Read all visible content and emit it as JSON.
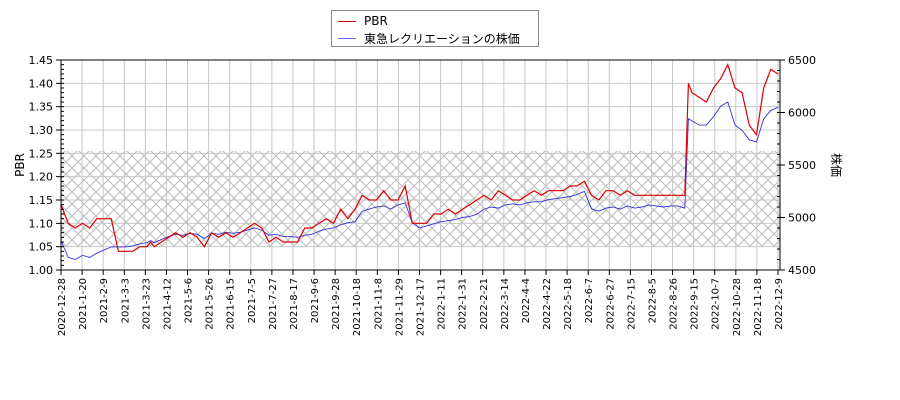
{
  "chart_data": {
    "type": "line",
    "title": "",
    "legend": {
      "position": "top-center",
      "entries": [
        "PBR",
        "東急レクリエーションの株価"
      ]
    },
    "xlabel": "",
    "ylabel": "PBR",
    "ylabel_right": "株価",
    "ylim": [
      1.0,
      1.45
    ],
    "ylim_right": [
      4500,
      6500
    ],
    "yticks": [
      "1.00",
      "1.05",
      "1.10",
      "1.15",
      "1.20",
      "1.25",
      "1.30",
      "1.35",
      "1.40",
      "1.45"
    ],
    "yticks_right": [
      "4500",
      "5000",
      "5500",
      "6000",
      "6500"
    ],
    "grid": true,
    "hatched_band": {
      "y_from": 1.05,
      "y_to": 1.255
    },
    "x_tick_labels": [
      "2020-12-28",
      "2021-1-20",
      "2021-2-9",
      "2021-3-3",
      "2021-3-23",
      "2021-4-12",
      "2021-5-6",
      "2021-5-26",
      "2021-6-15",
      "2021-7-5",
      "2021-7-27",
      "2021-8-17",
      "2021-9-6",
      "2021-9-28",
      "2021-10-18",
      "2021-11-8",
      "2021-11-29",
      "2021-12-17",
      "2022-1-11",
      "2022-1-31",
      "2022-2-21",
      "2022-3-14",
      "2022-4-4",
      "2022-4-22",
      "2022-5-18",
      "2022-6-7",
      "2022-6-27",
      "2022-7-15",
      "2022-8-5",
      "2022-8-26",
      "2022-9-15",
      "2022-10-7",
      "2022-10-28",
      "2022-11-18",
      "2022-12-9"
    ],
    "series": [
      {
        "name": "PBR",
        "color": "#dd0000",
        "axis": "left",
        "x_frac": [
          0,
          0.005,
          0.01,
          0.02,
          0.03,
          0.04,
          0.05,
          0.06,
          0.07,
          0.08,
          0.09,
          0.1,
          0.11,
          0.12,
          0.125,
          0.13,
          0.14,
          0.15,
          0.16,
          0.17,
          0.18,
          0.19,
          0.2,
          0.21,
          0.22,
          0.23,
          0.24,
          0.25,
          0.26,
          0.27,
          0.28,
          0.29,
          0.3,
          0.31,
          0.32,
          0.33,
          0.34,
          0.35,
          0.36,
          0.37,
          0.38,
          0.39,
          0.4,
          0.41,
          0.42,
          0.43,
          0.44,
          0.45,
          0.46,
          0.47,
          0.48,
          0.49,
          0.5,
          0.51,
          0.52,
          0.53,
          0.54,
          0.55,
          0.56,
          0.57,
          0.58,
          0.59,
          0.6,
          0.61,
          0.62,
          0.63,
          0.64,
          0.65,
          0.66,
          0.67,
          0.68,
          0.69,
          0.7,
          0.71,
          0.72,
          0.73,
          0.74,
          0.75,
          0.76,
          0.77,
          0.78,
          0.79,
          0.8,
          0.81,
          0.82,
          0.83,
          0.84,
          0.85,
          0.86,
          0.87,
          0.87,
          0.875,
          0.88,
          0.89,
          0.9,
          0.91,
          0.92,
          0.93,
          0.94,
          0.95,
          0.96,
          0.97,
          0.98,
          0.99,
          1.0
        ],
        "values": [
          1.14,
          1.12,
          1.1,
          1.09,
          1.1,
          1.09,
          1.11,
          1.11,
          1.11,
          1.04,
          1.04,
          1.04,
          1.05,
          1.05,
          1.06,
          1.05,
          1.06,
          1.07,
          1.08,
          1.07,
          1.08,
          1.07,
          1.05,
          1.08,
          1.07,
          1.08,
          1.07,
          1.08,
          1.09,
          1.1,
          1.09,
          1.06,
          1.07,
          1.06,
          1.06,
          1.06,
          1.09,
          1.09,
          1.1,
          1.11,
          1.1,
          1.13,
          1.11,
          1.13,
          1.16,
          1.15,
          1.15,
          1.17,
          1.15,
          1.15,
          1.18,
          1.1,
          1.1,
          1.1,
          1.12,
          1.12,
          1.13,
          1.12,
          1.13,
          1.14,
          1.15,
          1.16,
          1.15,
          1.17,
          1.16,
          1.15,
          1.15,
          1.16,
          1.17,
          1.16,
          1.17,
          1.17,
          1.17,
          1.18,
          1.18,
          1.19,
          1.16,
          1.15,
          1.17,
          1.17,
          1.16,
          1.17,
          1.16,
          1.16,
          1.16,
          1.16,
          1.16,
          1.16,
          1.16,
          1.16,
          1.16,
          1.4,
          1.38,
          1.37,
          1.36,
          1.39,
          1.41,
          1.44,
          1.39,
          1.38,
          1.31,
          1.29,
          1.39,
          1.43,
          1.42,
          1.41,
          1.36,
          1.38,
          1.39
        ]
      },
      {
        "name": "東急レクリエーションの株価",
        "color": "#3333dd",
        "axis": "right",
        "x_frac": [
          0,
          0.005,
          0.01,
          0.02,
          0.03,
          0.04,
          0.05,
          0.06,
          0.07,
          0.08,
          0.09,
          0.1,
          0.11,
          0.12,
          0.125,
          0.13,
          0.14,
          0.15,
          0.16,
          0.17,
          0.18,
          0.19,
          0.2,
          0.21,
          0.22,
          0.23,
          0.24,
          0.25,
          0.26,
          0.27,
          0.28,
          0.29,
          0.3,
          0.31,
          0.32,
          0.33,
          0.34,
          0.35,
          0.36,
          0.37,
          0.38,
          0.39,
          0.4,
          0.41,
          0.42,
          0.43,
          0.44,
          0.45,
          0.46,
          0.47,
          0.48,
          0.49,
          0.5,
          0.51,
          0.52,
          0.53,
          0.54,
          0.55,
          0.56,
          0.57,
          0.58,
          0.59,
          0.6,
          0.61,
          0.62,
          0.63,
          0.64,
          0.65,
          0.66,
          0.67,
          0.68,
          0.69,
          0.7,
          0.71,
          0.72,
          0.73,
          0.74,
          0.75,
          0.76,
          0.77,
          0.78,
          0.79,
          0.8,
          0.81,
          0.82,
          0.83,
          0.84,
          0.85,
          0.86,
          0.87,
          0.87,
          0.875,
          0.88,
          0.89,
          0.9,
          0.91,
          0.92,
          0.93,
          0.94,
          0.95,
          0.96,
          0.97,
          0.98,
          0.99,
          1.0
        ],
        "values": [
          4780,
          4700,
          4620,
          4600,
          4640,
          4620,
          4660,
          4690,
          4720,
          4720,
          4720,
          4730,
          4750,
          4760,
          4780,
          4760,
          4790,
          4820,
          4840,
          4830,
          4850,
          4840,
          4800,
          4850,
          4840,
          4860,
          4850,
          4860,
          4880,
          4900,
          4880,
          4830,
          4840,
          4820,
          4820,
          4810,
          4830,
          4840,
          4870,
          4890,
          4900,
          4930,
          4950,
          4960,
          5060,
          5080,
          5100,
          5110,
          5080,
          5120,
          5140,
          4950,
          4900,
          4920,
          4940,
          4960,
          4970,
          4980,
          5000,
          5010,
          5030,
          5080,
          5100,
          5090,
          5120,
          5130,
          5120,
          5140,
          5150,
          5150,
          5170,
          5180,
          5190,
          5200,
          5220,
          5250,
          5080,
          5060,
          5090,
          5100,
          5080,
          5110,
          5090,
          5100,
          5120,
          5110,
          5100,
          5110,
          5110,
          5090,
          5090,
          5940,
          5920,
          5880,
          5880,
          5960,
          6060,
          6100,
          5880,
          5830,
          5740,
          5720,
          5940,
          6020,
          6050,
          6000,
          5880,
          5900,
          6020
        ]
      }
    ]
  }
}
